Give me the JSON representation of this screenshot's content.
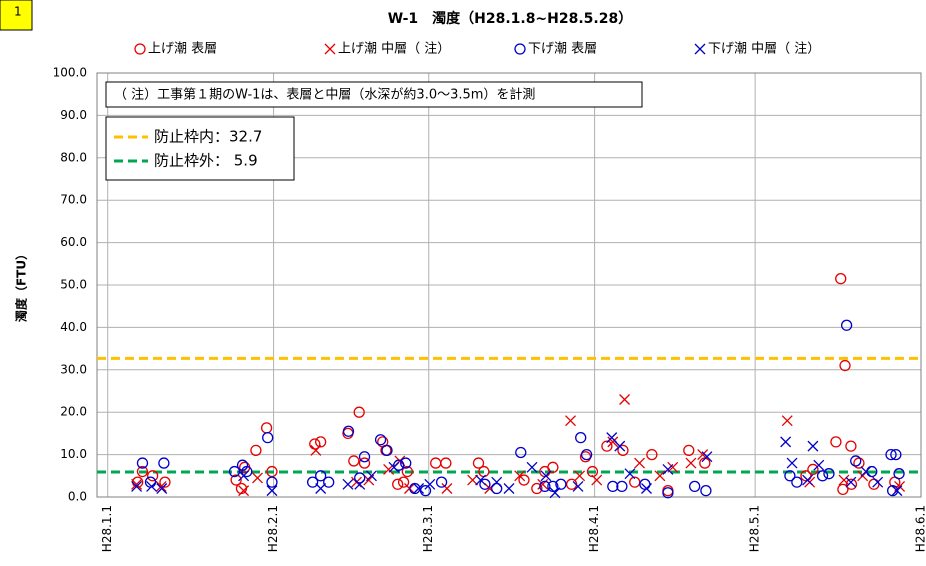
{
  "chart_data": {
    "type": "scatter",
    "badge": "1",
    "title": "W-1　濁度（H28.1.8~H28.5.28）",
    "y_label": "濁度（FTU）",
    "annotation": "（ 注）工事第１期のW-1は、表層と中層（水深が約3.0～3.5m）を計測",
    "grid": true,
    "xlim": [
      -2,
      152
    ],
    "xticks": [
      {
        "value": 0,
        "label": "H28.1.1"
      },
      {
        "value": 31,
        "label": "H28.2.1"
      },
      {
        "value": 60,
        "label": "H28.3.1"
      },
      {
        "value": 91,
        "label": "H28.4.1"
      },
      {
        "value": 121,
        "label": "H28.5.1"
      },
      {
        "value": 152,
        "label": "H28.6.1"
      }
    ],
    "ylim": [
      0,
      100
    ],
    "yticks": [
      {
        "value": 0,
        "label": "0.0"
      },
      {
        "value": 10,
        "label": "10.0"
      },
      {
        "value": 20,
        "label": "20.0"
      },
      {
        "value": 30,
        "label": "30.0"
      },
      {
        "value": 40,
        "label": "40.0"
      },
      {
        "value": 50,
        "label": "50.0"
      },
      {
        "value": 60,
        "label": "60.0"
      },
      {
        "value": 70,
        "label": "70.0"
      },
      {
        "value": 80,
        "label": "80.0"
      },
      {
        "value": 90,
        "label": "90.0"
      },
      {
        "value": 100,
        "label": "100.0"
      }
    ],
    "ref_lines": [
      {
        "label": "防止枠内：32.7",
        "value": 32.7,
        "color": "#ffc000"
      },
      {
        "label": "防止枠外： 5.9",
        "value": 5.9,
        "color": "#00a650"
      }
    ],
    "series": [
      {
        "name": "上げ潮 表層",
        "color": "#e60000",
        "marker": "circle",
        "x": [
          5.6,
          6.5,
          8.4,
          10.7,
          24,
          25,
          25.6,
          27.7,
          29.7,
          30.7,
          38.7,
          39.8,
          44.9,
          46,
          47,
          48,
          51.4,
          52,
          54.2,
          55.3,
          56,
          61.3,
          63.2,
          69.3,
          70.3,
          77.8,
          80.2,
          81.7,
          83.2,
          86.7,
          89.3,
          90.6,
          93.3,
          96.3,
          98.5,
          101.7,
          104.7,
          108.6,
          111.6,
          130.5,
          131.8,
          136.1,
          137.4,
          139,
          137,
          137.8,
          138.9,
          140.4,
          143.2,
          147.1
        ],
        "values": [
          3.5,
          6,
          5,
          3.5,
          4,
          2,
          7,
          11,
          16.3,
          6,
          12.5,
          13,
          15,
          8.5,
          20,
          8,
          13,
          11,
          3,
          3.5,
          6,
          8,
          8,
          8,
          6,
          4,
          2,
          6,
          7,
          3,
          9.5,
          6,
          12,
          11,
          3.5,
          10,
          1.5,
          11,
          8,
          5,
          6.5,
          13,
          1.8,
          3,
          51.5,
          31,
          12,
          8,
          3,
          3.5
        ]
      },
      {
        "name": "上げ潮 中層（ 注）",
        "color": "#e60000",
        "marker": "x",
        "x": [
          5.4,
          10,
          25.4,
          28,
          38.9,
          46.5,
          48.8,
          52.5,
          54.6,
          56.4,
          63.4,
          68.2,
          71.4,
          77,
          81.3,
          86.5,
          88.2,
          91.4,
          94.4,
          96.6,
          99.4,
          103.2,
          105.6,
          109,
          111.2,
          127,
          131.2,
          137.6,
          141.1,
          148
        ],
        "values": [
          3,
          2.5,
          1.5,
          4.5,
          11,
          3.5,
          4,
          6.5,
          8.5,
          2,
          2,
          4,
          2,
          5,
          3,
          18,
          5,
          4,
          13,
          23,
          8,
          5,
          7,
          8,
          10,
          18,
          3.5,
          4,
          5,
          2.5
        ]
      },
      {
        "name": "下げ潮 表層",
        "color": "#0000cc",
        "marker": "circle",
        "x": [
          6.5,
          8,
          10.5,
          23.7,
          25.2,
          26,
          29.9,
          30.7,
          38.3,
          39.8,
          41.3,
          45,
          47.1,
          48,
          51,
          52.2,
          54.4,
          55.7,
          57.4,
          59.4,
          62.4,
          70.5,
          72.7,
          77.2,
          81.7,
          83.2,
          84.7,
          88.4,
          89.5,
          94.4,
          96.1,
          100.4,
          104.7,
          109.7,
          111.8,
          127.5,
          128.8,
          133.6,
          134.8,
          138.1,
          139.8,
          142.8,
          146.4,
          147.3,
          147.9,
          146.7
        ],
        "values": [
          8,
          3.5,
          8,
          6,
          7.5,
          6,
          14,
          3.5,
          3.5,
          5,
          3.5,
          15.5,
          4.5,
          9.5,
          13.5,
          11,
          7.5,
          8,
          2,
          1.5,
          3.5,
          3,
          2,
          10.5,
          2.5,
          2.5,
          3,
          14,
          10,
          2.5,
          2.5,
          3,
          1,
          2.5,
          1.5,
          5,
          3.5,
          5,
          5.5,
          40.5,
          8.5,
          6,
          10,
          10,
          5.5,
          1.5
        ]
      },
      {
        "name": "下げ潮 中層（ 注）",
        "color": "#0000cc",
        "marker": "x",
        "x": [
          5.4,
          8.2,
          10.1,
          25.4,
          30.7,
          39.8,
          44.9,
          47.1,
          49.3,
          53.5,
          58.1,
          60.2,
          69.7,
          72.7,
          75,
          79.3,
          81.9,
          83.6,
          87.9,
          94.2,
          95.7,
          97.6,
          100.7,
          104.7,
          112,
          126.7,
          127.9,
          130.8,
          132.9,
          131.8,
          138.9,
          141.7,
          143.9,
          147.5
        ],
        "values": [
          2.5,
          2.5,
          2,
          5,
          1.5,
          2,
          3,
          3,
          5,
          7,
          2,
          3,
          4,
          3.5,
          2,
          7,
          5,
          1,
          2.5,
          14,
          12,
          5.5,
          2,
          6.5,
          9.5,
          13,
          8,
          4,
          7.5,
          12,
          3.5,
          6,
          3.5,
          1.5
        ]
      }
    ]
  }
}
